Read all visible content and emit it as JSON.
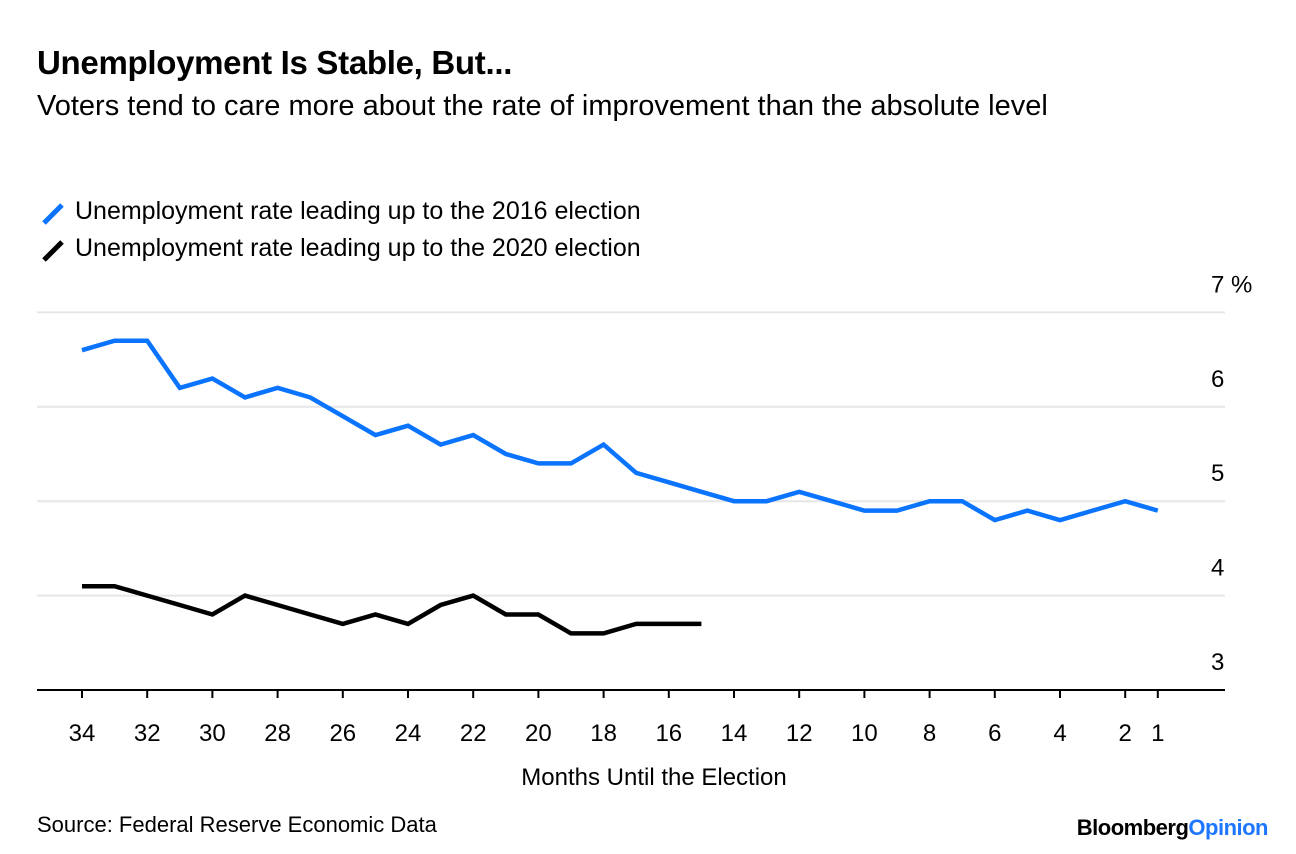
{
  "header": {
    "title": "Unemployment Is Stable, But...",
    "subtitle": "Voters tend to care more about the rate of improvement than the absolute level"
  },
  "colors": {
    "series_2016": "#0a74ff",
    "series_2020": "#000000",
    "gridline": "#e6e6e6",
    "axis": "#000000"
  },
  "chart_data": {
    "type": "line",
    "title": "Unemployment Is Stable, But...",
    "xlabel": "Months Until the Election",
    "ylabel": "%",
    "xlim": [
      36.0,
      0.2
    ],
    "ylim": [
      3,
      7
    ],
    "x_reversed": true,
    "x_ticks": [
      34,
      32,
      30,
      28,
      26,
      24,
      22,
      20,
      18,
      16,
      14,
      12,
      10,
      8,
      6,
      4,
      2,
      1
    ],
    "y_ticks": [
      3,
      4,
      5,
      6,
      7
    ],
    "y_tick_labels": [
      "3",
      "4",
      "5",
      "6",
      "7 %"
    ],
    "y_axis_side": "right",
    "series": [
      {
        "name": "Unemployment rate leading up to the 2016 election",
        "color_key": "series_2016",
        "x": [
          34,
          33,
          32,
          31,
          30,
          29,
          28,
          27,
          26,
          25,
          24,
          23,
          22,
          21,
          20,
          19,
          18,
          17,
          16,
          15,
          14,
          13,
          12,
          11,
          10,
          9,
          8,
          7,
          6,
          5,
          4,
          3,
          2,
          1
        ],
        "values": [
          6.6,
          6.7,
          6.7,
          6.2,
          6.3,
          6.1,
          6.2,
          6.1,
          5.9,
          5.7,
          5.8,
          5.6,
          5.7,
          5.5,
          5.4,
          5.4,
          5.6,
          5.3,
          5.2,
          5.1,
          5.0,
          5.0,
          5.1,
          5.0,
          4.9,
          4.9,
          5.0,
          5.0,
          4.8,
          4.9,
          4.8,
          4.9,
          5.0,
          4.9
        ]
      },
      {
        "name": "Unemployment rate leading up to the 2020 election",
        "color_key": "series_2020",
        "x": [
          34,
          33,
          32,
          31,
          30,
          29,
          28,
          27,
          26,
          25,
          24,
          23,
          22,
          21,
          20,
          19,
          18,
          17,
          16,
          15
        ],
        "values": [
          4.1,
          4.1,
          4.0,
          3.9,
          3.8,
          4.0,
          3.9,
          3.8,
          3.7,
          3.8,
          3.7,
          3.9,
          4.0,
          3.8,
          3.8,
          3.6,
          3.6,
          3.7,
          3.7,
          3.7
        ]
      }
    ]
  },
  "footer": {
    "source": "Source: Federal Reserve Economic Data",
    "brand_part1": "Bloomberg",
    "brand_part2": "Opinion"
  }
}
